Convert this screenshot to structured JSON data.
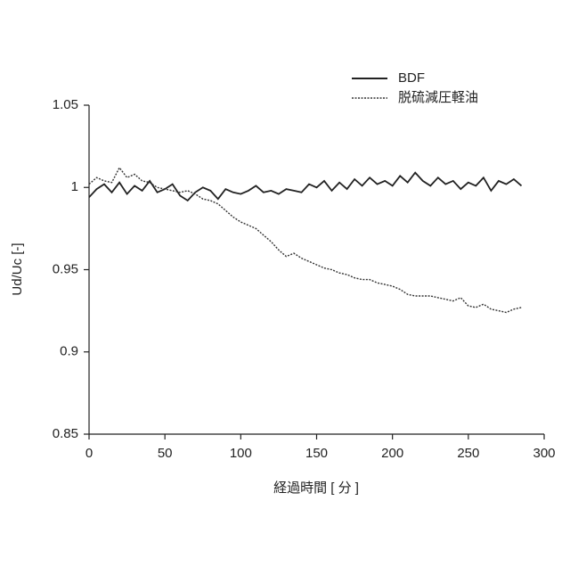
{
  "chart_data": {
    "type": "line",
    "x_label": "経過時間 [ 分 ]",
    "y_label": "Ud/Uc [-]",
    "x": [
      0,
      5,
      10,
      15,
      20,
      25,
      30,
      35,
      40,
      45,
      50,
      55,
      60,
      65,
      70,
      75,
      80,
      85,
      90,
      95,
      100,
      105,
      110,
      115,
      120,
      125,
      130,
      135,
      140,
      145,
      150,
      155,
      160,
      165,
      170,
      175,
      180,
      185,
      190,
      195,
      200,
      205,
      210,
      215,
      220,
      225,
      230,
      235,
      240,
      245,
      250,
      255,
      260,
      265,
      270,
      275,
      280,
      285
    ],
    "series": [
      {
        "name": "BDF",
        "color": "#222222",
        "dash": false,
        "values": [
          0.994,
          0.999,
          1.002,
          0.997,
          1.003,
          0.996,
          1.001,
          0.998,
          1.004,
          0.997,
          0.999,
          1.002,
          0.995,
          0.992,
          0.997,
          1.0,
          0.998,
          0.993,
          0.999,
          0.997,
          0.996,
          0.998,
          1.001,
          0.997,
          0.998,
          0.996,
          0.999,
          0.998,
          0.997,
          1.002,
          1.0,
          1.004,
          0.998,
          1.003,
          0.999,
          1.005,
          1.001,
          1.006,
          1.002,
          1.004,
          1.001,
          1.007,
          1.003,
          1.009,
          1.004,
          1.001,
          1.006,
          1.002,
          1.004,
          0.999,
          1.003,
          1.001,
          1.006,
          0.998,
          1.004,
          1.002,
          1.005,
          1.001
        ]
      },
      {
        "name": "脱硫減圧軽油",
        "color": "#333333",
        "dash": true,
        "values": [
          1.002,
          1.006,
          1.004,
          1.003,
          1.012,
          1.006,
          1.008,
          1.004,
          1.003,
          1.0,
          0.999,
          0.998,
          0.997,
          0.998,
          0.996,
          0.993,
          0.992,
          0.99,
          0.986,
          0.982,
          0.979,
          0.977,
          0.975,
          0.971,
          0.967,
          0.962,
          0.958,
          0.96,
          0.957,
          0.955,
          0.953,
          0.951,
          0.95,
          0.948,
          0.947,
          0.945,
          0.944,
          0.944,
          0.942,
          0.941,
          0.94,
          0.938,
          0.935,
          0.934,
          0.934,
          0.934,
          0.933,
          0.932,
          0.931,
          0.933,
          0.928,
          0.927,
          0.929,
          0.926,
          0.925,
          0.924,
          0.926,
          0.927
        ]
      }
    ],
    "xlim": [
      0,
      300
    ],
    "xticks": [
      0,
      50,
      100,
      150,
      200,
      250,
      300
    ],
    "ylim": [
      0.85,
      1.05
    ],
    "yticks": [
      0.85,
      0.9,
      0.95,
      1,
      1.05
    ],
    "grid": false,
    "legend": "top-right"
  }
}
